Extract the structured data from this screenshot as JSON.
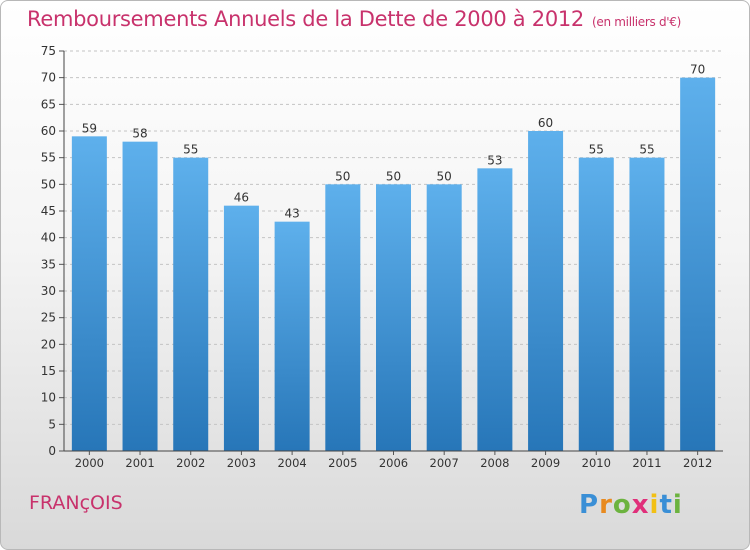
{
  "title": "Remboursements Annuels de la Dette de 2000 à 2012",
  "subtitle": "(en milliers d'€)",
  "commune": "FRANçOIS",
  "logo": {
    "letters": [
      "P",
      "r",
      "o",
      "x",
      "i",
      "t",
      "i"
    ],
    "colors": [
      "#3a8fd6",
      "#e88a1f",
      "#6cb33f",
      "#e02f7a",
      "#f2c014",
      "#3a8fd6",
      "#6cb33f"
    ]
  },
  "colors": {
    "bar": "#3d93d8",
    "bar_light": "#5eb0ec",
    "bar_dark": "#2776b8",
    "title": "#c8326c"
  },
  "chart_data": {
    "type": "bar",
    "categories": [
      "2000",
      "2001",
      "2002",
      "2003",
      "2004",
      "2005",
      "2006",
      "2007",
      "2008",
      "2009",
      "2010",
      "2011",
      "2012"
    ],
    "values": [
      59,
      58,
      55,
      46,
      43,
      50,
      50,
      50,
      53,
      60,
      55,
      55,
      70
    ],
    "title": "Remboursements Annuels de la Dette de 2000 à 2012",
    "ylim": [
      0,
      75
    ],
    "yticks": [
      0,
      5,
      10,
      15,
      20,
      25,
      30,
      35,
      40,
      45,
      50,
      55,
      60,
      65,
      70,
      75
    ],
    "grid": true,
    "data_labels": true
  }
}
